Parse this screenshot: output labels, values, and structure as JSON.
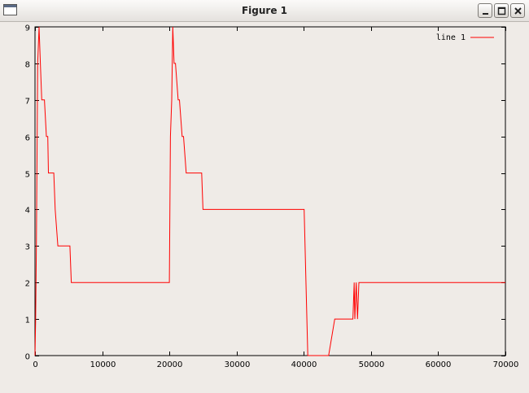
{
  "window": {
    "title": "Figure 1",
    "icons": [
      "window-icon",
      "minimize-icon",
      "maximize-icon",
      "close-icon"
    ]
  },
  "colors": {
    "background": "#efebe7",
    "series_line": "#ff0000",
    "axes": "#000000"
  },
  "chart_data": {
    "type": "line",
    "title": "",
    "xlabel": "",
    "ylabel": "",
    "xlim": [
      0,
      70000
    ],
    "ylim": [
      0,
      9
    ],
    "xticks": [
      0,
      10000,
      20000,
      30000,
      40000,
      50000,
      60000,
      70000
    ],
    "yticks": [
      0,
      1,
      2,
      3,
      4,
      5,
      6,
      7,
      8,
      9
    ],
    "grid": false,
    "legend_position": "top-right",
    "series": [
      {
        "name": "line 1",
        "color": "#ff0000",
        "x": [
          0,
          100,
          200,
          400,
          600,
          800,
          1000,
          1400,
          1700,
          1900,
          2000,
          2200,
          2800,
          3000,
          3400,
          3800,
          4000,
          5200,
          5400,
          5900,
          6000,
          20000,
          20150,
          20350,
          20500,
          20700,
          20900,
          21300,
          21500,
          21900,
          22100,
          22500,
          22800,
          23200,
          23400,
          24000,
          24800,
          25000,
          25200,
          25400,
          25600,
          40000,
          40050,
          40600,
          40700,
          43600,
          43700,
          44600,
          44700,
          47300,
          47500,
          47600,
          47800,
          48000,
          48200,
          48500,
          70000
        ],
        "y": [
          0,
          1,
          3,
          8,
          9,
          8,
          7,
          7,
          6,
          6,
          5,
          5,
          5,
          4,
          3,
          3,
          3,
          3,
          2,
          2,
          2,
          2,
          6,
          7,
          9,
          8,
          8,
          7,
          7,
          6,
          6,
          5,
          5,
          5,
          5,
          5,
          5,
          4,
          4,
          4,
          4,
          4,
          4,
          0,
          0,
          0,
          0,
          1,
          1,
          1,
          2,
          1,
          2,
          1,
          2,
          2,
          2
        ]
      }
    ]
  }
}
